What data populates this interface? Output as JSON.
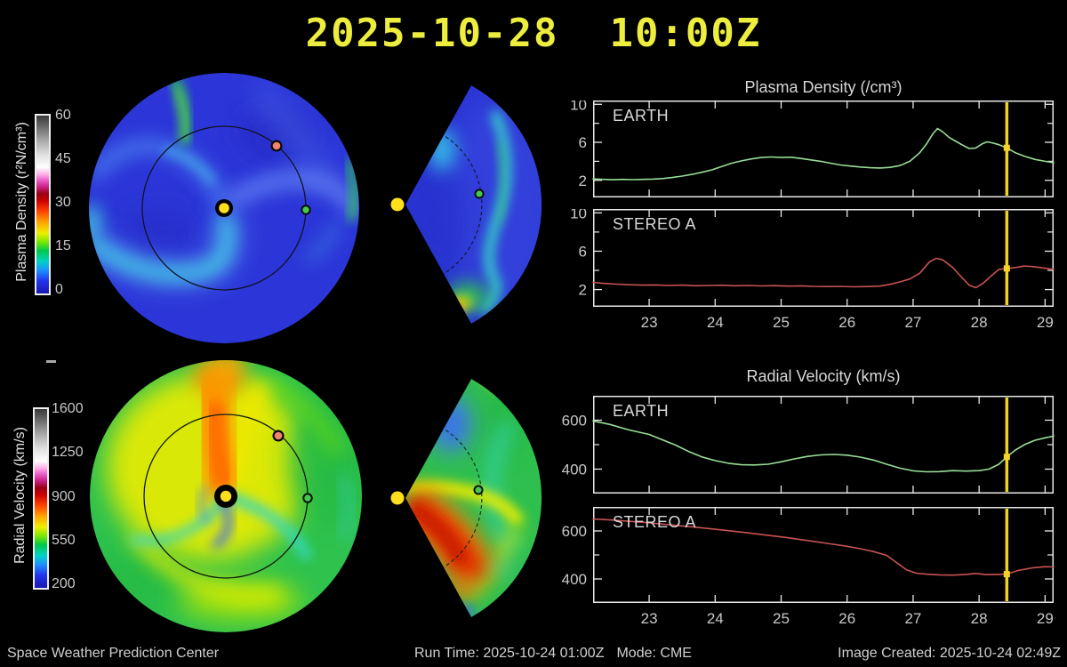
{
  "title": {
    "text": "2025-10-28  10:00Z"
  },
  "colors": {
    "title_yellow": "#eded3d",
    "frame": "#e8e8e8",
    "tick_text": "#c8c8c8",
    "earth_line": "#98dd98",
    "stereo_line": "#c85252",
    "timeline": "#f0d21e",
    "timeline_marker": "#f5d327",
    "sun": "#ffe01a",
    "earth_dot": "#46c84f",
    "stereo_dot": "#f2836e",
    "footer_text": "#d0d0d0"
  },
  "colorbars": [
    {
      "label": "Plasma Density (r²N/cm³)",
      "tick_labels": [
        "60",
        "45",
        "30",
        "15",
        "0"
      ],
      "gradient_stops": [
        "#1818b0 0%",
        "#2233ee 7%",
        "#1e90ff 13%",
        "#00d2c8 18%",
        "#00c84b 24%",
        "#7ce800 29%",
        "#eeee00 34%",
        "#ffa500 40%",
        "#ff4500 46%",
        "#cc0000 52%",
        "#990014 56%",
        "#cc2288 60%",
        "#ee66cc 64%",
        "#ffb0e8 67%",
        "#ffffff 71%",
        "#e0e0e0 78%",
        "#b0b0b0 85%",
        "#787878 92%",
        "#383838 100%"
      ]
    },
    {
      "label": "Radial Velocity (km/s)",
      "tick_labels": [
        "1600",
        "1250",
        "900",
        "550",
        "200"
      ],
      "gradient_stops": [
        "#1818b0 0%",
        "#2233ee 7%",
        "#1e90ff 13%",
        "#00d2c8 18%",
        "#00c84b 24%",
        "#7ce800 29%",
        "#eeee00 34%",
        "#ffa500 40%",
        "#ff4500 46%",
        "#cc0000 52%",
        "#990014 56%",
        "#cc2288 60%",
        "#ee66cc 64%",
        "#ffb0e8 67%",
        "#ffffff 71%",
        "#e0e0e0 78%",
        "#b0b0b0 85%",
        "#787878 92%",
        "#383838 100%"
      ]
    }
  ],
  "section_titles": {
    "density": "Plasma Density (/cm³)",
    "velocity": "Radial Velocity (km/s)"
  },
  "footer": {
    "left": "Space Weather Prediction Center",
    "run_time": "Run Time: 2025-10-24 01:00Z",
    "mode": "Mode: CME",
    "right": "Image Created: 2025-10-24 02:49Z"
  },
  "chart_data": [
    {
      "type": "line",
      "title": "Plasma Density (/cm³)",
      "label": "EARTH",
      "color_key": "earth_line",
      "x_range": [
        22.15,
        29.13
      ],
      "y_range": [
        0.2,
        10.4
      ],
      "x_ticks": [
        23,
        24,
        25,
        26,
        27,
        28,
        29
      ],
      "y_ticks_major": [
        2,
        6,
        10
      ],
      "y_ticks_minor": [
        4,
        8
      ],
      "show_x_labels": false,
      "time_marker": {
        "x": 28.42,
        "value": 5.42
      },
      "points": [
        [
          22.15,
          2.15
        ],
        [
          22.3,
          2.1
        ],
        [
          22.45,
          2.06
        ],
        [
          22.6,
          2.1
        ],
        [
          22.75,
          2.07
        ],
        [
          22.9,
          2.1
        ],
        [
          23.05,
          2.13
        ],
        [
          23.2,
          2.18
        ],
        [
          23.35,
          2.3
        ],
        [
          23.5,
          2.45
        ],
        [
          23.65,
          2.62
        ],
        [
          23.8,
          2.85
        ],
        [
          23.95,
          3.1
        ],
        [
          24.1,
          3.45
        ],
        [
          24.25,
          3.8
        ],
        [
          24.4,
          4.05
        ],
        [
          24.55,
          4.25
        ],
        [
          24.7,
          4.4
        ],
        [
          24.85,
          4.46
        ],
        [
          25.0,
          4.4
        ],
        [
          25.15,
          4.43
        ],
        [
          25.3,
          4.3
        ],
        [
          25.45,
          4.15
        ],
        [
          25.6,
          4.0
        ],
        [
          25.75,
          3.8
        ],
        [
          25.9,
          3.62
        ],
        [
          26.05,
          3.5
        ],
        [
          26.2,
          3.4
        ],
        [
          26.35,
          3.33
        ],
        [
          26.5,
          3.3
        ],
        [
          26.65,
          3.36
        ],
        [
          26.8,
          3.55
        ],
        [
          26.95,
          4.0
        ],
        [
          27.1,
          4.9
        ],
        [
          27.2,
          5.8
        ],
        [
          27.3,
          6.9
        ],
        [
          27.37,
          7.45
        ],
        [
          27.45,
          7.1
        ],
        [
          27.55,
          6.5
        ],
        [
          27.65,
          6.1
        ],
        [
          27.75,
          5.7
        ],
        [
          27.85,
          5.35
        ],
        [
          27.95,
          5.4
        ],
        [
          28.05,
          5.85
        ],
        [
          28.12,
          6.05
        ],
        [
          28.2,
          5.95
        ],
        [
          28.3,
          5.75
        ],
        [
          28.42,
          5.42
        ],
        [
          28.55,
          4.9
        ],
        [
          28.7,
          4.5
        ],
        [
          28.85,
          4.2
        ],
        [
          29.0,
          4.0
        ],
        [
          29.13,
          3.85
        ]
      ]
    },
    {
      "type": "line",
      "title": "Plasma Density (/cm³)",
      "label": "STEREO A",
      "color_key": "stereo_line",
      "x_range": [
        22.15,
        29.13
      ],
      "y_range": [
        0.2,
        10.4
      ],
      "x_ticks": [
        23,
        24,
        25,
        26,
        27,
        28,
        29
      ],
      "y_ticks_major": [
        2,
        6,
        10
      ],
      "y_ticks_minor": [
        4,
        8
      ],
      "show_x_labels": true,
      "time_marker": {
        "x": 28.42,
        "value": 4.2
      },
      "points": [
        [
          22.15,
          2.75
        ],
        [
          22.3,
          2.65
        ],
        [
          22.5,
          2.56
        ],
        [
          22.7,
          2.5
        ],
        [
          22.9,
          2.46
        ],
        [
          23.1,
          2.48
        ],
        [
          23.3,
          2.43
        ],
        [
          23.5,
          2.46
        ],
        [
          23.7,
          2.4
        ],
        [
          23.9,
          2.43
        ],
        [
          24.1,
          2.45
        ],
        [
          24.3,
          2.4
        ],
        [
          24.5,
          2.43
        ],
        [
          24.7,
          2.38
        ],
        [
          24.9,
          2.41
        ],
        [
          25.1,
          2.36
        ],
        [
          25.3,
          2.39
        ],
        [
          25.5,
          2.33
        ],
        [
          25.7,
          2.31
        ],
        [
          25.9,
          2.33
        ],
        [
          26.1,
          2.29
        ],
        [
          26.3,
          2.31
        ],
        [
          26.5,
          2.36
        ],
        [
          26.65,
          2.55
        ],
        [
          26.8,
          2.8
        ],
        [
          26.95,
          3.1
        ],
        [
          27.1,
          3.7
        ],
        [
          27.25,
          4.9
        ],
        [
          27.35,
          5.25
        ],
        [
          27.45,
          5.1
        ],
        [
          27.6,
          4.3
        ],
        [
          27.72,
          3.4
        ],
        [
          27.85,
          2.45
        ],
        [
          27.95,
          2.2
        ],
        [
          28.05,
          2.6
        ],
        [
          28.18,
          3.4
        ],
        [
          28.3,
          4.1
        ],
        [
          28.42,
          4.2
        ],
        [
          28.55,
          4.3
        ],
        [
          28.68,
          4.45
        ],
        [
          28.8,
          4.4
        ],
        [
          28.95,
          4.27
        ],
        [
          29.13,
          4.1
        ]
      ]
    },
    {
      "type": "line",
      "title": "Radial Velocity (km/s)",
      "label": "EARTH",
      "color_key": "earth_line",
      "x_range": [
        22.15,
        29.13
      ],
      "y_range": [
        300,
        700
      ],
      "x_ticks": [
        23,
        24,
        25,
        26,
        27,
        28,
        29
      ],
      "y_ticks_major": [
        400,
        600
      ],
      "y_ticks_minor": [
        500
      ],
      "show_x_labels": false,
      "time_marker": {
        "x": 28.42,
        "value": 450
      },
      "points": [
        [
          22.15,
          597
        ],
        [
          22.4,
          583
        ],
        [
          22.7,
          560
        ],
        [
          23.0,
          542
        ],
        [
          23.2,
          520
        ],
        [
          23.4,
          498
        ],
        [
          23.6,
          472
        ],
        [
          23.8,
          450
        ],
        [
          24.0,
          435
        ],
        [
          24.2,
          424
        ],
        [
          24.4,
          418
        ],
        [
          24.6,
          417
        ],
        [
          24.8,
          420
        ],
        [
          25.0,
          430
        ],
        [
          25.2,
          442
        ],
        [
          25.4,
          452
        ],
        [
          25.6,
          458
        ],
        [
          25.8,
          460
        ],
        [
          26.0,
          457
        ],
        [
          26.2,
          449
        ],
        [
          26.4,
          437
        ],
        [
          26.6,
          420
        ],
        [
          26.8,
          404
        ],
        [
          27.0,
          393
        ],
        [
          27.2,
          389
        ],
        [
          27.4,
          390
        ],
        [
          27.6,
          394
        ],
        [
          27.8,
          392
        ],
        [
          28.0,
          394
        ],
        [
          28.15,
          400
        ],
        [
          28.3,
          420
        ],
        [
          28.42,
          450
        ],
        [
          28.55,
          478
        ],
        [
          28.7,
          502
        ],
        [
          28.85,
          518
        ],
        [
          29.0,
          528
        ],
        [
          29.13,
          535
        ]
      ]
    },
    {
      "type": "line",
      "title": "Radial Velocity (km/s)",
      "label": "STEREO A",
      "color_key": "stereo_line",
      "x_range": [
        22.15,
        29.13
      ],
      "y_range": [
        300,
        700
      ],
      "x_ticks": [
        23,
        24,
        25,
        26,
        27,
        28,
        29
      ],
      "y_ticks_major": [
        400,
        600
      ],
      "y_ticks_minor": [
        500
      ],
      "show_x_labels": true,
      "time_marker": {
        "x": 28.42,
        "value": 420
      },
      "points": [
        [
          22.15,
          650
        ],
        [
          22.4,
          646
        ],
        [
          22.7,
          640
        ],
        [
          23.0,
          634
        ],
        [
          23.3,
          626
        ],
        [
          23.6,
          618
        ],
        [
          23.9,
          610
        ],
        [
          24.2,
          601
        ],
        [
          24.5,
          592
        ],
        [
          24.8,
          582
        ],
        [
          25.1,
          572
        ],
        [
          25.4,
          560
        ],
        [
          25.7,
          548
        ],
        [
          26.0,
          536
        ],
        [
          26.2,
          526
        ],
        [
          26.4,
          514
        ],
        [
          26.6,
          498
        ],
        [
          26.75,
          468
        ],
        [
          26.9,
          438
        ],
        [
          27.05,
          424
        ],
        [
          27.2,
          420
        ],
        [
          27.4,
          417
        ],
        [
          27.6,
          416
        ],
        [
          27.8,
          419
        ],
        [
          27.95,
          423
        ],
        [
          28.1,
          418
        ],
        [
          28.25,
          419
        ],
        [
          28.42,
          420
        ],
        [
          28.6,
          436
        ],
        [
          28.8,
          446
        ],
        [
          29.0,
          451
        ],
        [
          29.13,
          450
        ]
      ]
    }
  ]
}
